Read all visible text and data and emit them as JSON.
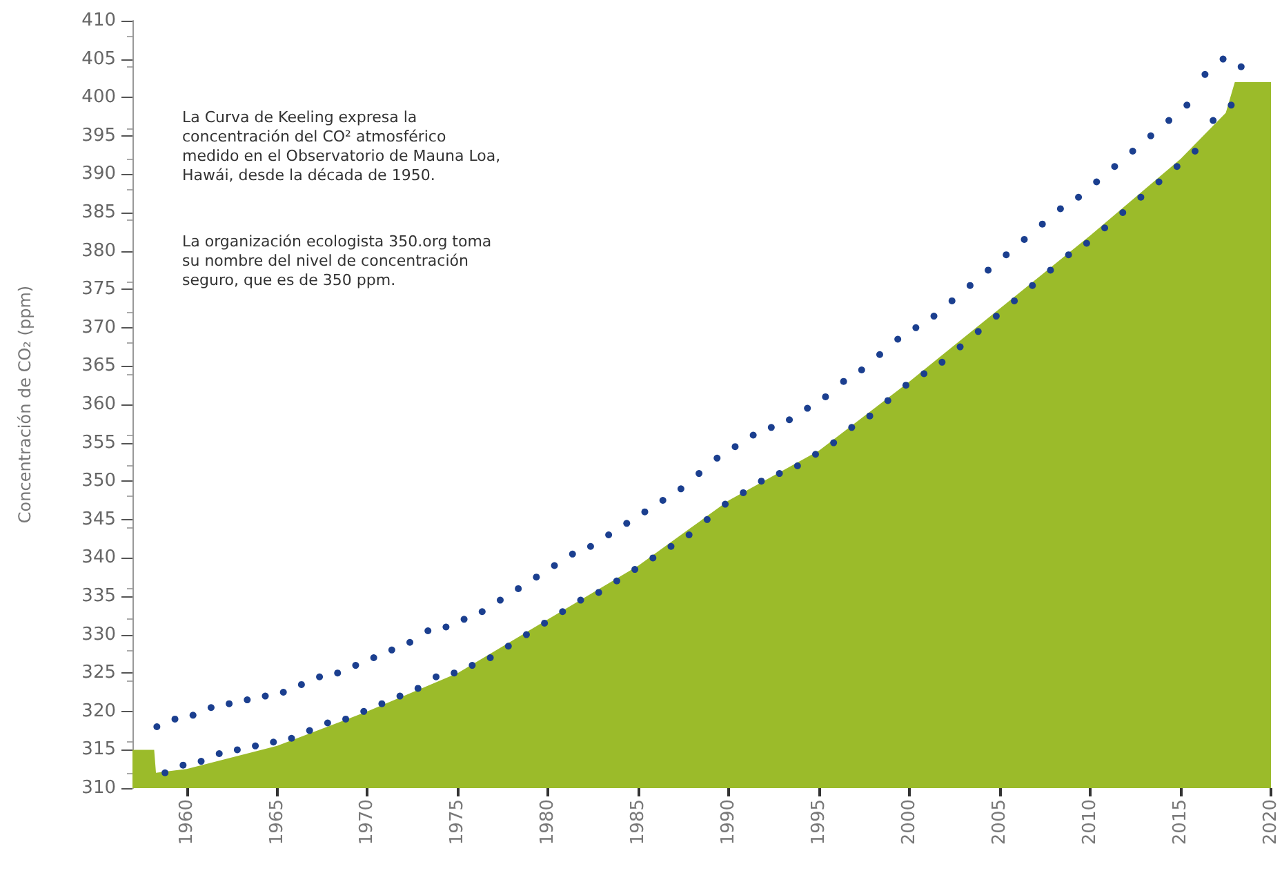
{
  "chart_data": {
    "type": "scatter",
    "ylabel": "Concentración de CO₂ (ppm)",
    "annotations": [
      "La Curva de Keeling expresa la\nconcentración del CO² atmosférico\nmedido en el Observatorio de Mauna Loa,\nHawái, desde la década de 1950.",
      "La organización ecologista 350.org toma\nsu nombre del nivel de concentración\nseguro, que es de 350 ppm."
    ],
    "xlim": [
      1957,
      2020
    ],
    "xticks": [
      1960,
      1965,
      1970,
      1975,
      1980,
      1985,
      1990,
      1995,
      2000,
      2005,
      2010,
      2015,
      2020
    ],
    "ylim": [
      310,
      410
    ],
    "yticks": [
      310,
      315,
      320,
      325,
      330,
      335,
      340,
      345,
      350,
      355,
      360,
      365,
      370,
      375,
      380,
      385,
      390,
      395,
      400,
      405,
      410
    ],
    "grid": false,
    "marker": "circle",
    "series": [
      {
        "type": "area",
        "marker": "none",
        "color": "#9bbb2a",
        "x": [
          1957,
          1958.2,
          1958.3,
          1960,
          1965,
          1970,
          1975,
          1980,
          1985,
          1990,
          1995,
          2000,
          2005,
          2010,
          2015,
          2017.5,
          2018,
          2020
        ],
        "values": [
          315,
          315,
          312,
          312.5,
          315.5,
          320,
          325,
          332,
          339,
          347.5,
          354,
          363,
          372.5,
          382,
          392,
          398,
          402,
          402
        ]
      },
      {
        "color": "#1b3f8f",
        "x": [
          1958.35,
          1958.8,
          1959.35,
          1959.8,
          1960.35,
          1960.8,
          1961.35,
          1961.8,
          1962.35,
          1962.8,
          1963.35,
          1963.8,
          1964.35,
          1964.8,
          1965.35,
          1965.8,
          1966.35,
          1966.8,
          1967.35,
          1967.8,
          1968.35,
          1968.8,
          1969.35,
          1969.8,
          1970.35,
          1970.8,
          1971.35,
          1971.8,
          1972.35,
          1972.8,
          1973.35,
          1973.8,
          1974.35,
          1974.8,
          1975.35,
          1975.8,
          1976.35,
          1976.8,
          1977.35,
          1977.8,
          1978.35,
          1978.8,
          1979.35,
          1979.8,
          1980.35,
          1980.8,
          1981.35,
          1981.8,
          1982.35,
          1982.8,
          1983.35,
          1983.8,
          1984.35,
          1984.8,
          1985.35,
          1985.8,
          1986.35,
          1986.8,
          1987.35,
          1987.8,
          1988.35,
          1988.8,
          1989.35,
          1989.8,
          1990.35,
          1990.8,
          1991.35,
          1991.8,
          1992.35,
          1992.8,
          1993.35,
          1993.8,
          1994.35,
          1994.8,
          1995.35,
          1995.8,
          1996.35,
          1996.8,
          1997.35,
          1997.8,
          1998.35,
          1998.8,
          1999.35,
          1999.8,
          2000.35,
          2000.8,
          2001.35,
          2001.8,
          2002.35,
          2002.8,
          2003.35,
          2003.8,
          2004.35,
          2004.8,
          2005.35,
          2005.8,
          2006.35,
          2006.8,
          2007.35,
          2007.8,
          2008.35,
          2008.8,
          2009.35,
          2009.8,
          2010.35,
          2010.8,
          2011.35,
          2011.8,
          2012.35,
          2012.8,
          2013.35,
          2013.8,
          2014.35,
          2014.8,
          2015.35,
          2015.8,
          2016.35,
          2016.8,
          2017.35,
          2017.8,
          2018.35
        ],
        "values": [
          318,
          312,
          319,
          313,
          319.5,
          313.5,
          320.5,
          314.5,
          321,
          315,
          321.5,
          315.5,
          322,
          316,
          322.5,
          316.5,
          323.5,
          317.5,
          324.5,
          318.5,
          325,
          319,
          326,
          320,
          327,
          321,
          328,
          322,
          329,
          323,
          330.5,
          324.5,
          331,
          325,
          332,
          326,
          333,
          327,
          334.5,
          328.5,
          336,
          330,
          337.5,
          331.5,
          339,
          333,
          340.5,
          334.5,
          341.5,
          335.5,
          343,
          337,
          344.5,
          338.5,
          346,
          340,
          347.5,
          341.5,
          349,
          343,
          351,
          345,
          353,
          347,
          354.5,
          348.5,
          356,
          350,
          357,
          351,
          358,
          352,
          359.5,
          353.5,
          361,
          355,
          363,
          357,
          364.5,
          358.5,
          366.5,
          360.5,
          368.5,
          362.5,
          370,
          364,
          371.5,
          365.5,
          373.5,
          367.5,
          375.5,
          369.5,
          377.5,
          371.5,
          379.5,
          373.5,
          381.5,
          375.5,
          383.5,
          377.5,
          385.5,
          379.5,
          387,
          381,
          389,
          383,
          391,
          385,
          393,
          387,
          395,
          389,
          397,
          391,
          399,
          393,
          403,
          397,
          405,
          399,
          404
        ]
      }
    ]
  }
}
